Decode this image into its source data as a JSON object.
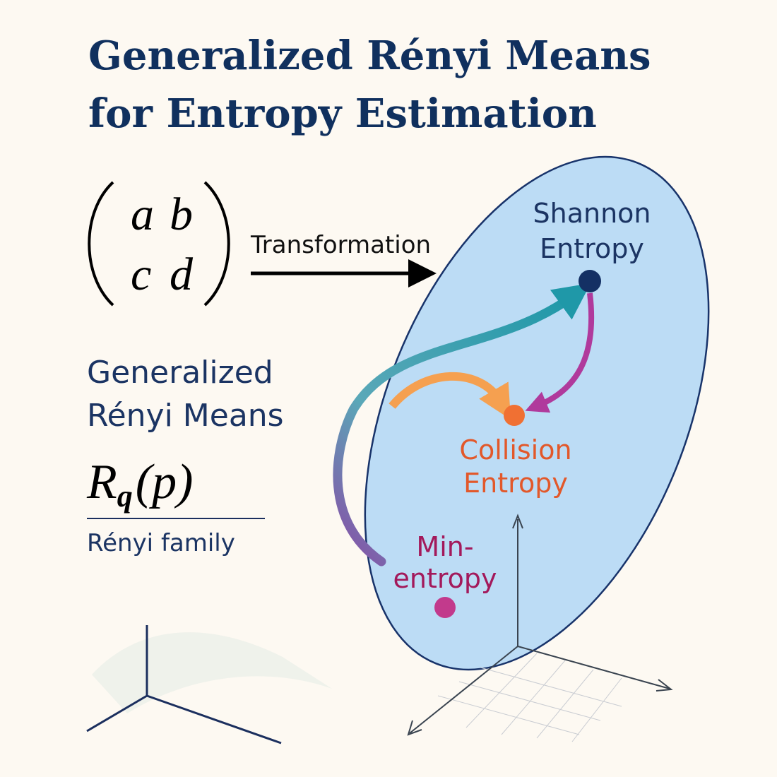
{
  "title": [
    "Generalized Rényi Means",
    "for Entropy Estimation"
  ],
  "matrix": [
    [
      "a",
      "b"
    ],
    [
      "c",
      "d"
    ]
  ],
  "arrow_label": "Transformation",
  "panel": {
    "heading": [
      "Generalized",
      "Rényi Means"
    ],
    "formula": {
      "symbol": "R",
      "subscript": "q",
      "argument": "(p)"
    },
    "caption": "Rényi family"
  },
  "nodes": [
    {
      "label": [
        "Shannon",
        "Entropy"
      ]
    },
    {
      "label": [
        "Collision",
        "Entropy"
      ]
    },
    {
      "label": [
        "Min-",
        "entropy"
      ]
    }
  ]
}
